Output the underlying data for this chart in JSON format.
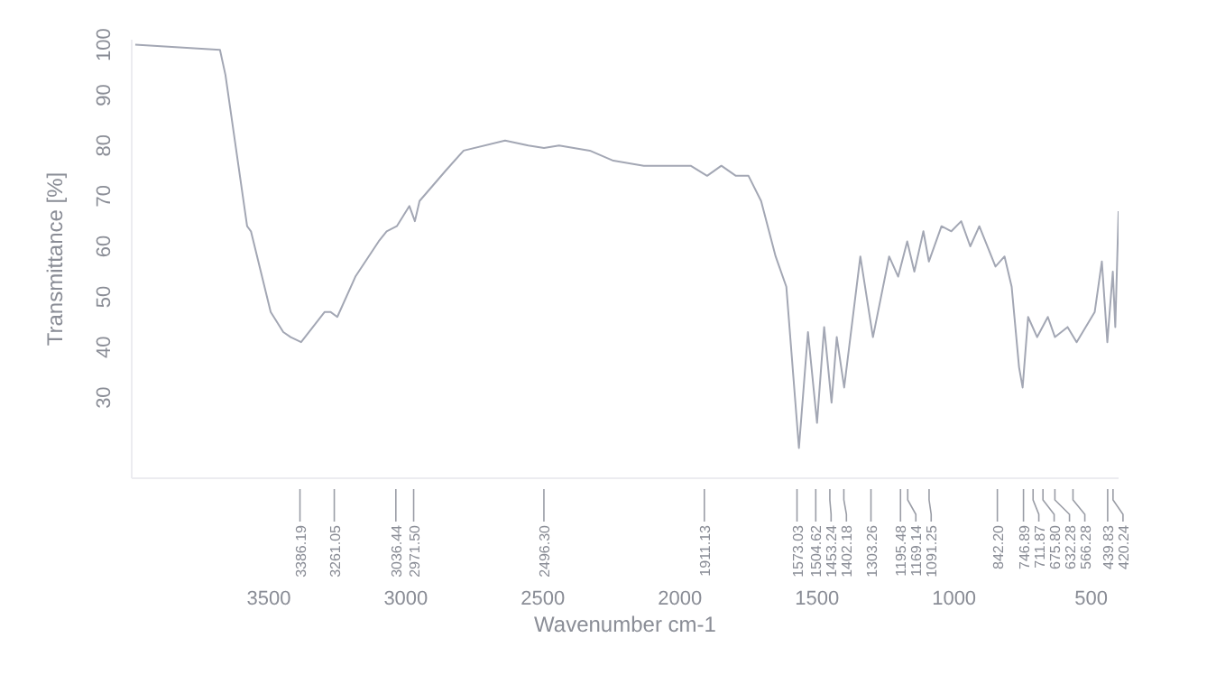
{
  "chart_data": {
    "type": "line",
    "xlabel": "Wavenumber cm-1",
    "ylabel": "Transmittance [%]",
    "xlim": [
      4000,
      400
    ],
    "xticks": [
      3500,
      3000,
      2500,
      2000,
      1500,
      1000,
      500
    ],
    "ylim": [
      14,
      101
    ],
    "yticks": [
      30,
      40,
      50,
      60,
      70,
      80,
      90,
      100
    ],
    "x": [
      3987,
      3678,
      3658,
      3579,
      3565,
      3493,
      3447,
      3420,
      3382,
      3296,
      3275,
      3250,
      3184,
      3099,
      3070,
      3033,
      2987,
      2967,
      2950,
      2855,
      2789,
      2638,
      2553,
      2496,
      2441,
      2329,
      2243,
      2132,
      1961,
      1901,
      1849,
      1796,
      1750,
      1704,
      1651,
      1612,
      1566,
      1533,
      1500,
      1474,
      1447,
      1428,
      1401,
      1342,
      1296,
      1237,
      1204,
      1171,
      1145,
      1112,
      1092,
      1046,
      1010,
      974,
      941,
      908,
      849,
      816,
      790,
      763,
      750,
      730,
      697,
      658,
      632,
      586,
      553,
      487,
      461,
      441,
      421,
      412,
      400
    ],
    "series": [
      {
        "color": "#a3a7b4",
        "values": [
          100,
          99,
          94,
          64,
          63,
          47,
          43,
          42,
          41,
          47,
          47,
          46,
          54,
          61,
          63,
          64,
          68,
          65,
          69,
          75,
          79,
          81,
          80,
          79.5,
          80,
          79,
          77,
          76,
          76,
          74,
          76,
          74,
          74,
          69,
          58,
          52,
          20,
          43,
          25,
          44,
          29,
          42,
          32,
          58,
          42,
          58,
          54,
          61,
          55,
          63,
          57,
          64,
          63,
          65,
          60,
          64,
          56,
          58,
          52,
          36,
          32,
          46,
          42,
          46,
          42,
          44,
          41,
          47,
          57,
          41,
          55,
          44,
          67
        ]
      }
    ],
    "annotations": [
      {
        "text": "3386.19",
        "x": 3386.19
      },
      {
        "text": "3261.05",
        "x": 3261.05
      },
      {
        "text": "3036.44",
        "x": 3036.44
      },
      {
        "text": "2971.50",
        "x": 2971.5
      },
      {
        "text": "2496.30",
        "x": 2496.3
      },
      {
        "text": "1911.13",
        "x": 1911.13
      },
      {
        "text": "1573.03",
        "x": 1573.03
      },
      {
        "text": "1504.62",
        "x": 1504.62
      },
      {
        "text": "1453.24",
        "x": 1453.24
      },
      {
        "text": "1402.18",
        "x": 1402.18
      },
      {
        "text": "1303.26",
        "x": 1303.26
      },
      {
        "text": "1195.48",
        "x": 1195.48
      },
      {
        "text": "1169.14",
        "x": 1169.14
      },
      {
        "text": "1091.25",
        "x": 1091.25
      },
      {
        "text": "842.20",
        "x": 842.2
      },
      {
        "text": "746.89",
        "x": 746.89
      },
      {
        "text": "711.87",
        "x": 711.87
      },
      {
        "text": "675.80",
        "x": 675.8
      },
      {
        "text": "632.28",
        "x": 632.28
      },
      {
        "text": "566.28",
        "x": 566.28
      },
      {
        "text": "439.83",
        "x": 439.83
      },
      {
        "text": "420.24",
        "x": 420.24
      }
    ]
  }
}
